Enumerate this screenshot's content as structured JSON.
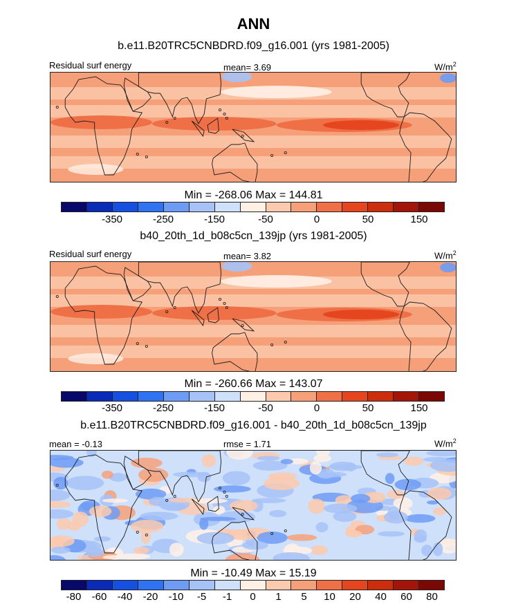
{
  "title": "ANN",
  "colors": {
    "diverging": [
      "#08086b",
      "#0a2ab8",
      "#1650e0",
      "#2f72f2",
      "#6e9cf5",
      "#a6c2f7",
      "#cfe0fb",
      "#fff0e6",
      "#fbc9ad",
      "#f6a07a",
      "#ef6f47",
      "#e6461f",
      "#cc2d0c",
      "#a31509",
      "#7a0906"
    ],
    "land_outline": "#1a1a1a",
    "border": "#222222"
  },
  "panels": [
    {
      "subtitle": "b.e11.B20TRC5CNBDRD.f09_g16.001 (yrs 1981-2005)",
      "left_label": "Residual surf energy",
      "center_label": "mean=   3.69",
      "units": "W/m",
      "units_sup": "2",
      "minmax": "Min = -268.06 Max = 144.81",
      "colorbar_ticks": [
        "-350",
        "-250",
        "-150",
        "-50",
        "0",
        "50",
        "150"
      ],
      "field": "mean-warm"
    },
    {
      "subtitle": "b40_20th_1d_b08c5cn_139jp (yrs 1981-2005)",
      "left_label": "Residual surf energy",
      "center_label": "mean=   3.82",
      "units": "W/m",
      "units_sup": "2",
      "minmax": "Min = -260.66 Max = 143.07",
      "colorbar_ticks": [
        "-350",
        "-250",
        "-150",
        "-50",
        "0",
        "50",
        "150"
      ],
      "field": "mean-warm"
    },
    {
      "subtitle": "b.e11.B20TRC5CNBDRD.f09_g16.001 - b40_20th_1d_b08c5cn_139jp",
      "left_label": "mean =  -0.13",
      "center_label": "rmse =   1.71",
      "units": "W/m",
      "units_sup": "2",
      "minmax": "Min = -10.49 Max =  15.19",
      "colorbar_ticks": [
        "-80",
        "-60",
        "-40",
        "-20",
        "-10",
        "-5",
        "-1",
        "0",
        "1",
        "5",
        "10",
        "20",
        "40",
        "60",
        "80"
      ],
      "field": "difference"
    }
  ]
}
